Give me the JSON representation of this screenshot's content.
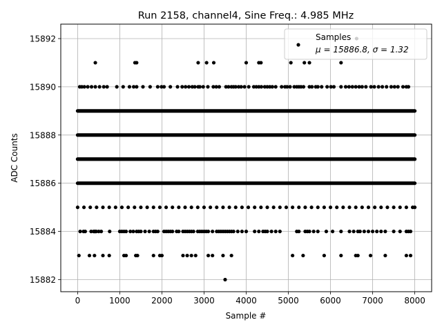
{
  "chart_data": {
    "type": "scatter",
    "title": "Run 2158, channel4, Sine Freq.: 4.985 MHz",
    "xlabel": "Sample #",
    "ylabel": "ADC Counts",
    "xlim": [
      -400,
      8400
    ],
    "ylim": [
      15881.5,
      15892.6
    ],
    "xticks": [
      0,
      1000,
      2000,
      3000,
      4000,
      5000,
      6000,
      7000,
      8000
    ],
    "xtick_labels": [
      "0",
      "1000",
      "2000",
      "3000",
      "4000",
      "5000",
      "6000",
      "7000",
      "8000"
    ],
    "yticks": [
      15882,
      15884,
      15886,
      15888,
      15890,
      15892
    ],
    "ytick_labels": [
      "15882",
      "15884",
      "15886",
      "15888",
      "15890",
      "15892"
    ],
    "grid": true,
    "legend": {
      "placement": "upper right",
      "title_line": "Samples",
      "stats_line": "μ = 15886.8, σ = 1.32"
    },
    "series": [
      {
        "name": "Samples",
        "color": "#000000",
        "marker": "circle",
        "note_levels": "ADC level -> sample indices (dense levels rendered as continuous runs)",
        "levels": [
          {
            "y": 15885,
            "x": [
              0,
              150,
              300,
              450,
              600,
              750,
              900,
              1050,
              1200,
              1350,
              1500,
              1650,
              1800,
              1950,
              2100,
              2250,
              2400,
              2550,
              2700,
              2850,
              3000,
              3150,
              3300,
              3450,
              3600,
              3750,
              3900,
              4050,
              4200,
              4350,
              4500,
              4650,
              4800,
              4950,
              5100,
              5250,
              5400,
              5550,
              5700,
              5850,
              6000,
              6150,
              6300,
              6450,
              6600,
              6750,
              6900,
              7050,
              7200,
              7350,
              7500,
              7650,
              7800,
              7950,
              8000
            ]
          },
          {
            "y": 15886,
            "x": [
              0,
              8000
            ]
          },
          {
            "y": 15887,
            "x": [
              0,
              8000
            ]
          },
          {
            "y": 15888,
            "x": [
              0,
              8000
            ]
          },
          {
            "y": 15889,
            "x": [
              0,
              8000
            ]
          },
          {
            "y": 15890,
            "x": [
              50,
              100,
              160,
              240,
              330,
              420,
              520,
              620,
              700,
              930,
              1080,
              1230,
              1330,
              1400,
              1550,
              1720,
              1900,
              1990,
              2050,
              2200,
              2370,
              2480,
              2560,
              2640,
              2720,
              2780,
              2860,
              2900,
              2980,
              3090,
              3220,
              3290,
              3360,
              3520,
              3580,
              3650,
              3700,
              3750,
              3820,
              3880,
              3960,
              4060,
              4180,
              4240,
              4300,
              4360,
              4440,
              4500,
              4560,
              4620,
              4700,
              4840,
              4920,
              4970,
              5040,
              5140,
              5200,
              5250,
              5300,
              5360,
              5500,
              5560,
              5650,
              5700,
              5790,
              5920,
              6010,
              6080,
              6250,
              6360,
              6440,
              6520,
              6600,
              6680,
              6750,
              6840,
              6960,
              7040,
              7140,
              7230,
              7330,
              7440,
              7520,
              7600,
              7720,
              7800,
              7850
            ]
          },
          {
            "y": 15884,
            "x": [
              60,
              140,
              180,
              320,
              380,
              400,
              420,
              440,
              500,
              560,
              760,
              1000,
              1050,
              1100,
              1150,
              1250,
              1320,
              1400,
              1450,
              1500,
              1600,
              1700,
              1800,
              1850,
              1900,
              2050,
              2100,
              2150,
              2200,
              2250,
              2350,
              2400,
              2500,
              2550,
              2600,
              2650,
              2700,
              2750,
              2850,
              2900,
              2950,
              3000,
              3050,
              3100,
              3200,
              3300,
              3350,
              3400,
              3450,
              3500,
              3550,
              3600,
              3650,
              3700,
              3800,
              3900,
              4000,
              4200,
              4300,
              4400,
              4450,
              4500,
              4600,
              4700,
              4800,
              5200,
              5250,
              5400,
              5450,
              5500,
              5600,
              5700,
              5900,
              6050,
              6250,
              6450,
              6550,
              6650,
              6700,
              6800,
              6900,
              7000,
              7100,
              7200,
              7300,
              7500,
              7650,
              7800,
              7850,
              7900
            ]
          },
          {
            "y": 15883,
            "x": [
              30,
              280,
              400,
              600,
              750,
              1100,
              1150,
              1380,
              1420,
              1800,
              1950,
              2000,
              2500,
              2600,
              2700,
              2800,
              3100,
              3200,
              3450,
              3650,
              5100,
              5350,
              5850,
              6250,
              6600,
              6650,
              6950,
              7300,
              7800,
              7900
            ]
          },
          {
            "y": 15891,
            "x": [
              420,
              1360,
              1400,
              2860,
              3060,
              3230,
              4000,
              4300,
              4350,
              5060,
              5380,
              5500,
              6250
            ]
          },
          {
            "y": 15892,
            "x": [
              6620
            ]
          },
          {
            "y": 15882,
            "x": [
              3500
            ]
          }
        ]
      }
    ]
  }
}
